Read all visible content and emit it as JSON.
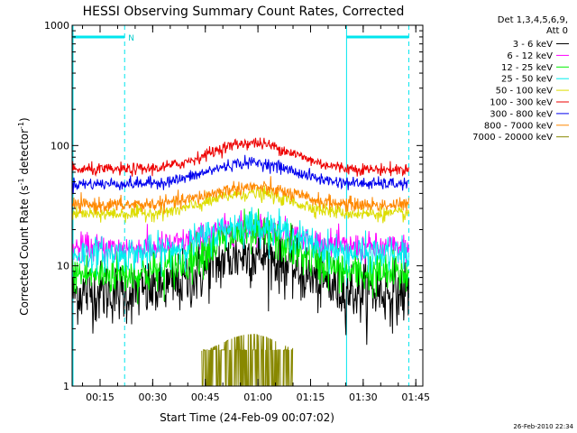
{
  "chart_data": {
    "type": "line",
    "title": "HESSI Observing Summary Count Rates, Corrected",
    "xlabel": "Start Time (24-Feb-09 00:07:02)",
    "ylabel_main": "Corrected Count Rate (s",
    "ylabel_sup1": "-1",
    "ylabel_mid": " detector",
    "ylabel_sup2": "-1",
    "ylabel_end": ")",
    "ylim": [
      1,
      1000
    ],
    "yscale": "log",
    "xlim": [
      "00:07:02",
      "01:47:00"
    ],
    "x_ticks": [
      "00:15",
      "00:30",
      "00:45",
      "01:00",
      "01:15",
      "01:30",
      "01:45"
    ],
    "y_ticks": [
      "1",
      "10",
      "100",
      "1000"
    ],
    "legend_header": [
      "Det 1,3,4,5,6,9,",
      "Att 0"
    ],
    "legend_position": "right",
    "series": [
      {
        "name": "3 - 6 keV",
        "color": "#000000",
        "base": 6.0,
        "peak": 12.5,
        "noise": 0.13
      },
      {
        "name": "6 - 12 keV",
        "color": "#ff00ff",
        "base": 14.0,
        "peak": 21.0,
        "noise": 0.06
      },
      {
        "name": "12 - 25 keV",
        "color": "#00ee00",
        "base": 8.5,
        "peak": 18.5,
        "noise": 0.09
      },
      {
        "name": "25 - 50 keV",
        "color": "#00eeee",
        "base": 12.5,
        "peak": 22.0,
        "noise": 0.07
      },
      {
        "name": "50 - 100 keV",
        "color": "#dddd00",
        "base": 27.0,
        "peak": 40.0,
        "noise": 0.03
      },
      {
        "name": "100 - 300 keV",
        "color": "#ee0000",
        "base": 63.0,
        "peak": 105.0,
        "noise": 0.025
      },
      {
        "name": "300 - 800 keV",
        "color": "#0000ee",
        "base": 48.0,
        "peak": 72.0,
        "noise": 0.025
      },
      {
        "name": "800 - 7000 keV",
        "color": "#ff8800",
        "base": 32.0,
        "peak": 45.0,
        "noise": 0.03
      },
      {
        "name": "7000 - 20000 keV",
        "color": "#888800",
        "base": 2.0,
        "peak": 2.7,
        "noise": 0.0
      }
    ],
    "peak_time": "00:58:00",
    "event_label": "N",
    "event_bars": [
      {
        "start": "00:07:02",
        "end": "00:22:00"
      },
      {
        "start": "01:25:00",
        "end": "01:43:00"
      }
    ],
    "timestamp": "26-Feb-2010 22:34"
  }
}
